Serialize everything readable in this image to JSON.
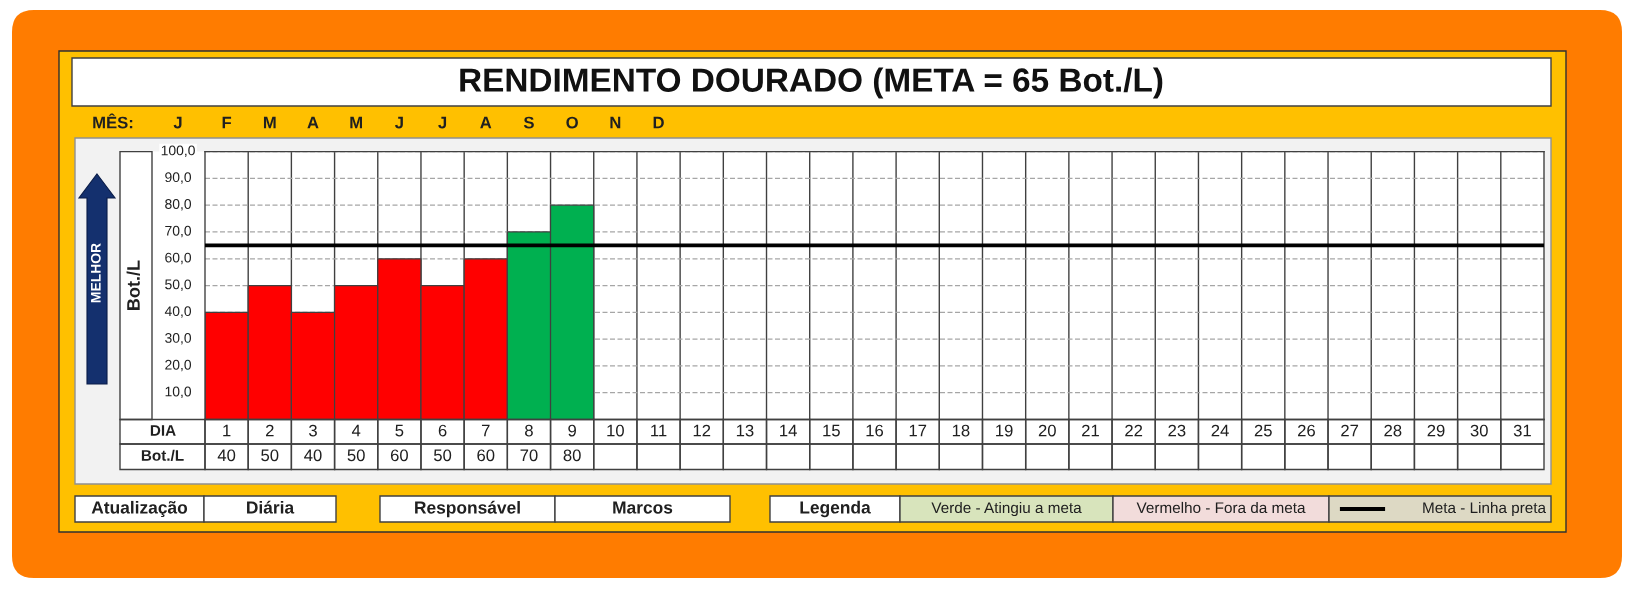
{
  "chart_data": {
    "type": "bar",
    "title": "RENDIMENTO DOURADO (META = 65 Bot./L)",
    "xlabel": "DIA",
    "ylabel": "Bot./L",
    "categories": [
      "1",
      "2",
      "3",
      "4",
      "5",
      "6",
      "7",
      "8",
      "9",
      "10",
      "11",
      "12",
      "13",
      "14",
      "15",
      "16",
      "17",
      "18",
      "19",
      "20",
      "21",
      "22",
      "23",
      "24",
      "25",
      "26",
      "27",
      "28",
      "29",
      "30",
      "31"
    ],
    "values": [
      40,
      50,
      40,
      50,
      60,
      50,
      60,
      70,
      80,
      null,
      null,
      null,
      null,
      null,
      null,
      null,
      null,
      null,
      null,
      null,
      null,
      null,
      null,
      null,
      null,
      null,
      null,
      null,
      null,
      null,
      null
    ],
    "colors": [
      "#ff0000",
      "#ff0000",
      "#ff0000",
      "#ff0000",
      "#ff0000",
      "#ff0000",
      "#ff0000",
      "#00b050",
      "#00b050",
      null,
      null,
      null,
      null,
      null,
      null,
      null,
      null,
      null,
      null,
      null,
      null,
      null,
      null,
      null,
      null,
      null,
      null,
      null,
      null,
      null,
      null
    ],
    "ylim": [
      0,
      100
    ],
    "yticks": [
      {
        "value": 10,
        "label": "10,0"
      },
      {
        "value": 20,
        "label": "20,0"
      },
      {
        "value": 30,
        "label": "30,0"
      },
      {
        "value": 40,
        "label": "40,0"
      },
      {
        "value": 50,
        "label": "50,0"
      },
      {
        "value": 60,
        "label": "60,0"
      },
      {
        "value": 70,
        "label": "70,0"
      },
      {
        "value": 80,
        "label": "80,0"
      },
      {
        "value": 90,
        "label": "90,0"
      },
      {
        "value": 100,
        "label": "100,0"
      }
    ],
    "grid": true,
    "data_labels": true,
    "ref_lines": [
      {
        "axis": "y",
        "value": 65,
        "label": "Meta - Linha preta",
        "color": "#000000"
      }
    ],
    "annotations": [
      "MÊS:",
      "J",
      "F",
      "M",
      "A",
      "M",
      "J",
      "J",
      "A",
      "S",
      "O",
      "N",
      "D",
      "MELHOR",
      "Bot./L",
      "Atualização",
      "Diária",
      "Responsável",
      "Marcos",
      "Legenda",
      "Verde - Atingiu a meta",
      "Vermelho - Fora da meta"
    ]
  }
}
